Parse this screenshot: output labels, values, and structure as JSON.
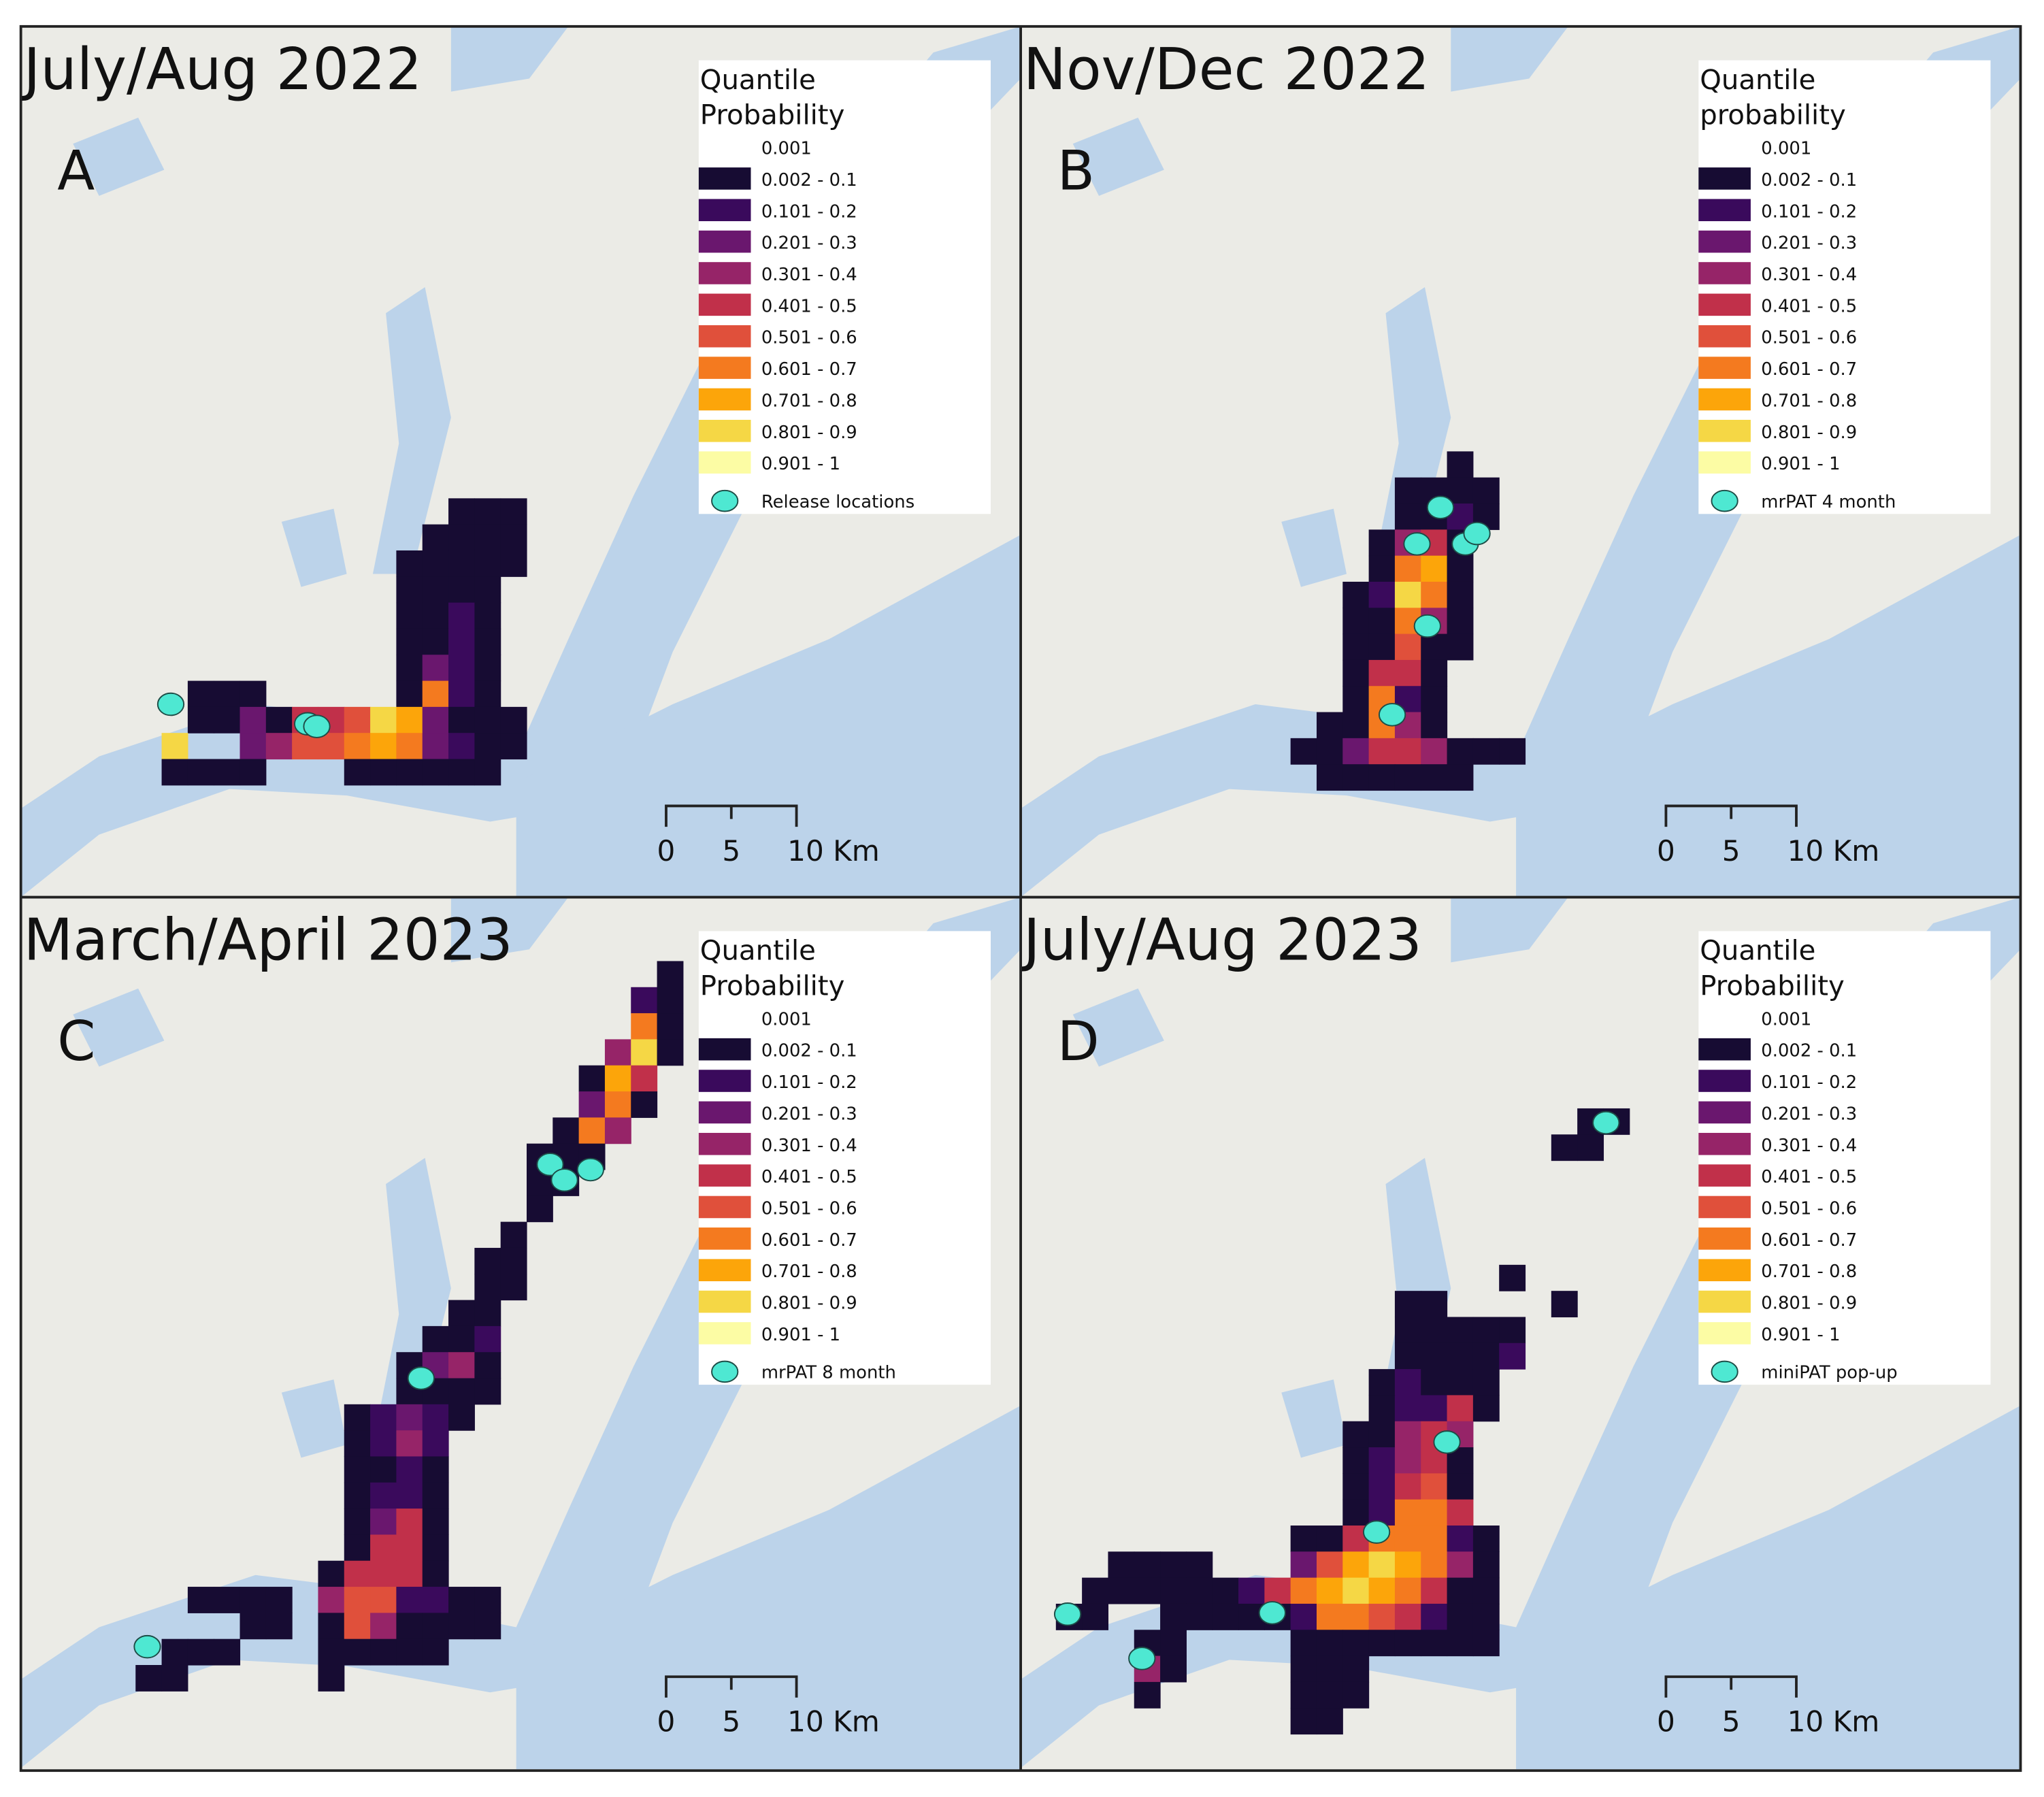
{
  "legend_classes": [
    {
      "label": "0.001",
      "color": "#ffffff"
    },
    {
      "label": "0.002 - 0.1",
      "color": "#170c33"
    },
    {
      "label": "0.101 - 0.2",
      "color": "#3a0a5c"
    },
    {
      "label": "0.201 - 0.3",
      "color": "#6a176e"
    },
    {
      "label": "0.301 - 0.4",
      "color": "#962468"
    },
    {
      "label": "0.401 - 0.5",
      "color": "#c1304a"
    },
    {
      "label": "0.501 - 0.6",
      "color": "#e0503b"
    },
    {
      "label": "0.601 - 0.7",
      "color": "#f47a1f"
    },
    {
      "label": "0.701 - 0.8",
      "color": "#fca50a"
    },
    {
      "label": "0.801 - 0.9",
      "color": "#f5d745"
    },
    {
      "label": "0.901 - 1",
      "color": "#fcfca4"
    }
  ],
  "point_color": "#4ee8d2",
  "land_color": "#ebebe6",
  "water_color": "#bcd3ea",
  "scale_bar": {
    "ticks": [
      "0",
      "5",
      "10 Km"
    ]
  },
  "panels": [
    {
      "title": "July/Aug 2022",
      "letter": "A",
      "legend_title_1": "Quantile",
      "legend_title_2": "Probability",
      "point_label": "Release locations"
    },
    {
      "title": "Nov/Dec 2022",
      "letter": "B",
      "legend_title_1": "Quantile",
      "legend_title_2": "probability",
      "point_label": "mrPAT 4 month"
    },
    {
      "title": "March/April 2023",
      "letter": "C",
      "legend_title_1": "Quantile",
      "legend_title_2": "Probability",
      "point_label": "mrPAT 8 month"
    },
    {
      "title": "July/Aug 2023",
      "letter": "D",
      "legend_title_1": "Quantile",
      "legend_title_2": "Probability",
      "point_label": "miniPAT pop-up"
    }
  ]
}
